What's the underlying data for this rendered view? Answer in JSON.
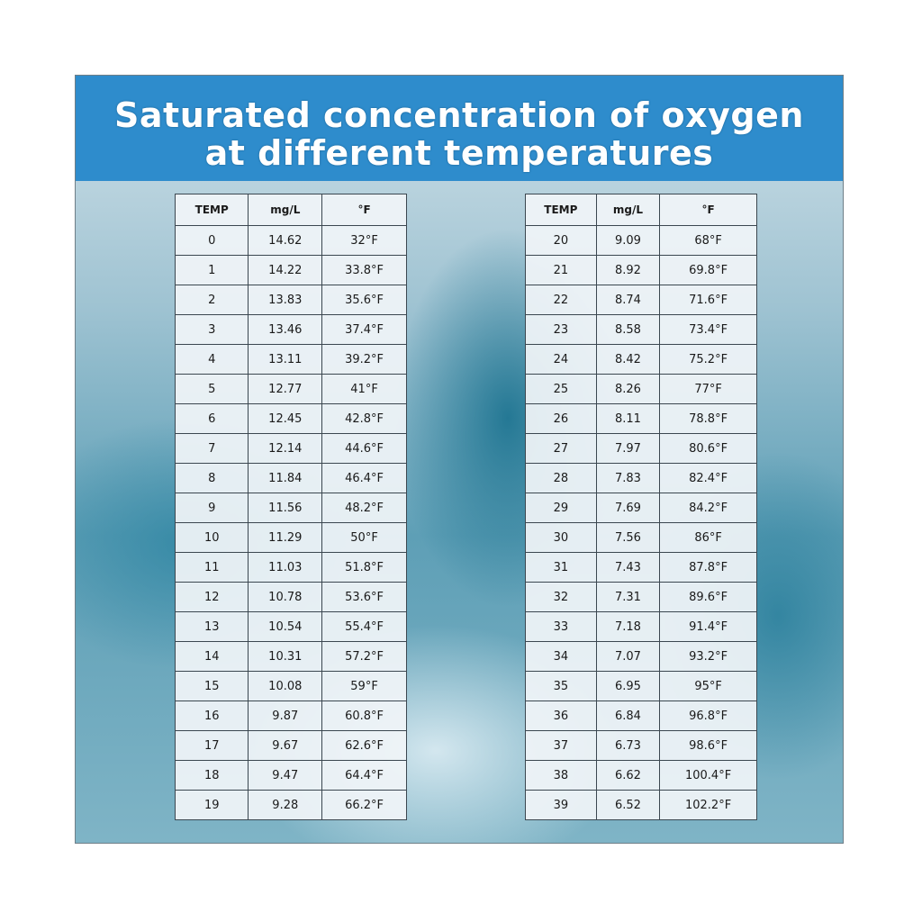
{
  "title": [
    "Saturated concentration of oxygen",
    "at different temperatures"
  ],
  "tables": [
    {
      "header": [
        "TEMP",
        "mg/L",
        "°F"
      ],
      "rows": [
        [
          "0",
          "14.62",
          "32°F"
        ],
        [
          "1",
          "14.22",
          "33.8°F"
        ],
        [
          "2",
          "13.83",
          "35.6°F"
        ],
        [
          "3",
          "13.46",
          "37.4°F"
        ],
        [
          "4",
          "13.11",
          "39.2°F"
        ],
        [
          "5",
          "12.77",
          "41°F"
        ],
        [
          "6",
          "12.45",
          "42.8°F"
        ],
        [
          "7",
          "12.14",
          "44.6°F"
        ],
        [
          "8",
          "11.84",
          "46.4°F"
        ],
        [
          "9",
          "11.56",
          "48.2°F"
        ],
        [
          "10",
          "11.29",
          "50°F"
        ],
        [
          "11",
          "11.03",
          "51.8°F"
        ],
        [
          "12",
          "10.78",
          "53.6°F"
        ],
        [
          "13",
          "10.54",
          "55.4°F"
        ],
        [
          "14",
          "10.31",
          "57.2°F"
        ],
        [
          "15",
          "10.08",
          "59°F"
        ],
        [
          "16",
          "9.87",
          "60.8°F"
        ],
        [
          "17",
          "9.67",
          "62.6°F"
        ],
        [
          "18",
          "9.47",
          "64.4°F"
        ],
        [
          "19",
          "9.28",
          "66.2°F"
        ]
      ]
    },
    {
      "header": [
        "TEMP",
        "mg/L",
        "°F"
      ],
      "rows": [
        [
          "20",
          "9.09",
          "68°F"
        ],
        [
          "21",
          "8.92",
          "69.8°F"
        ],
        [
          "22",
          "8.74",
          "71.6°F"
        ],
        [
          "23",
          "8.58",
          "73.4°F"
        ],
        [
          "24",
          "8.42",
          "75.2°F"
        ],
        [
          "25",
          "8.26",
          "77°F"
        ],
        [
          "26",
          "8.11",
          "78.8°F"
        ],
        [
          "27",
          "7.97",
          "80.6°F"
        ],
        [
          "28",
          "7.83",
          "82.4°F"
        ],
        [
          "29",
          "7.69",
          "84.2°F"
        ],
        [
          "30",
          "7.56",
          "86°F"
        ],
        [
          "31",
          "7.43",
          "87.8°F"
        ],
        [
          "32",
          "7.31",
          "89.6°F"
        ],
        [
          "33",
          "7.18",
          "91.4°F"
        ],
        [
          "34",
          "7.07",
          "93.2°F"
        ],
        [
          "35",
          "6.95",
          "95°F"
        ],
        [
          "36",
          "6.84",
          "96.8°F"
        ],
        [
          "37",
          "6.73",
          "98.6°F"
        ],
        [
          "38",
          "6.62",
          "100.4°F"
        ],
        [
          "39",
          "6.52",
          "102.2°F"
        ]
      ]
    }
  ]
}
